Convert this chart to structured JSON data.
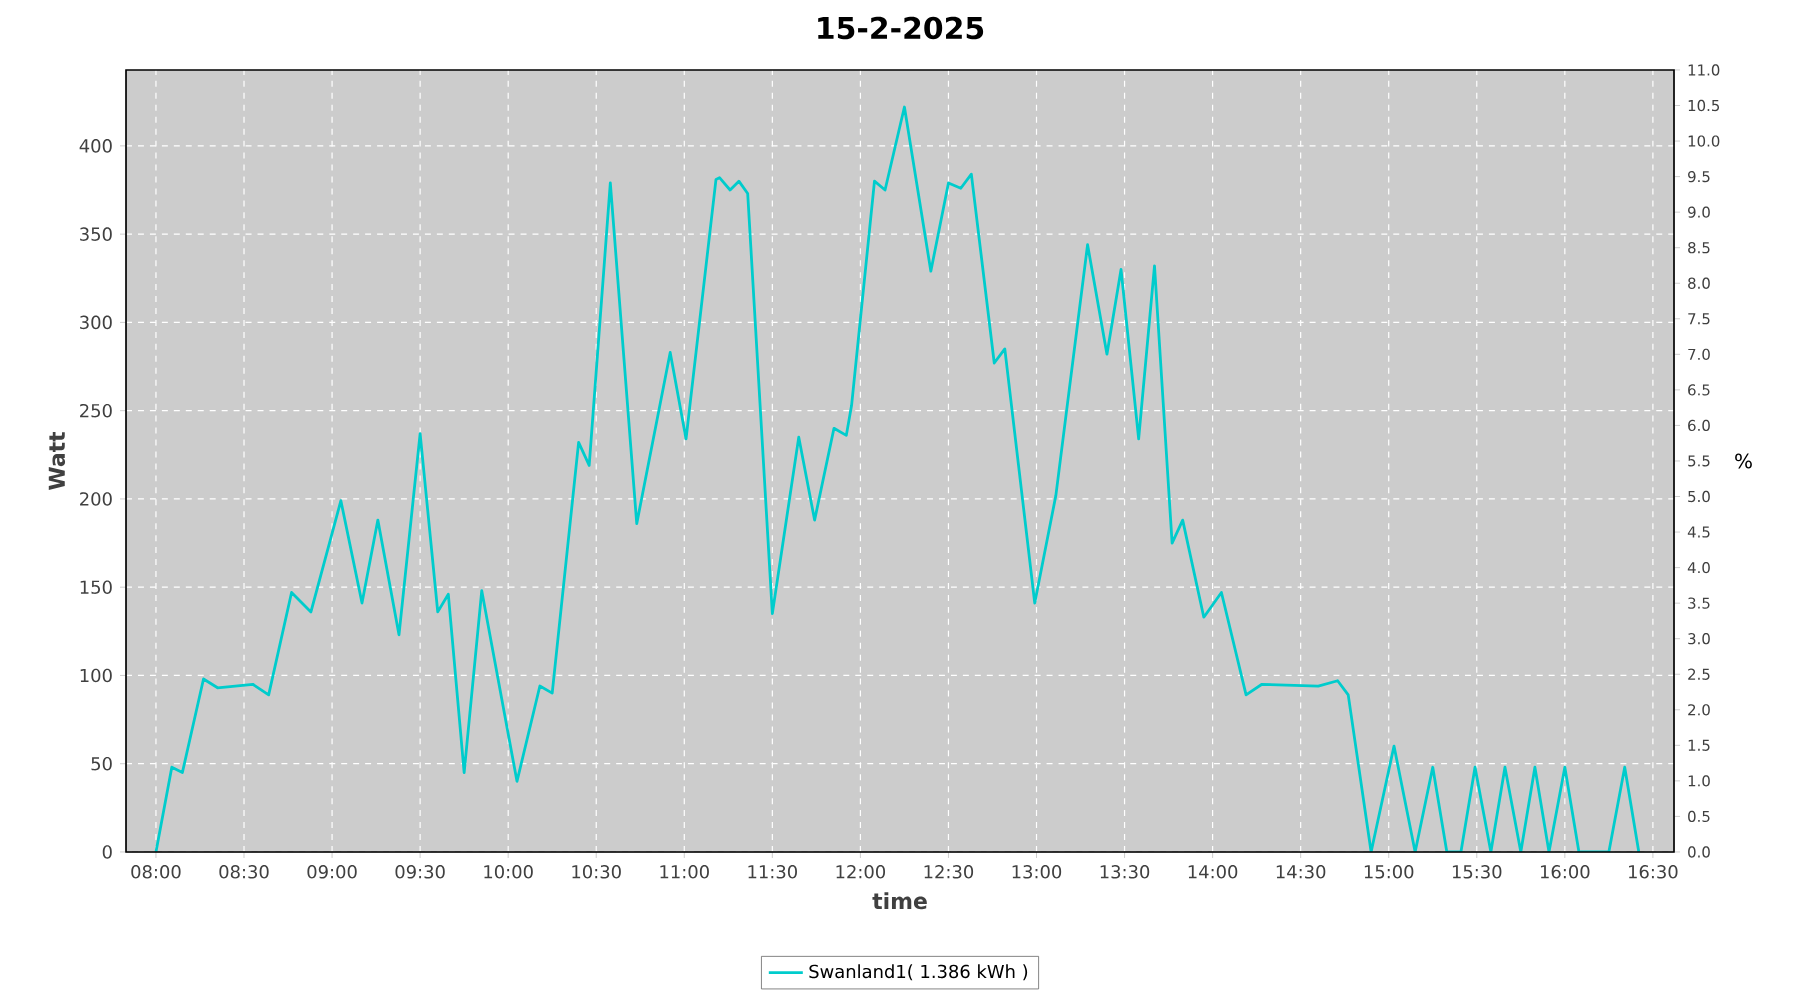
{
  "chart_data": {
    "type": "line",
    "title": "15-2-2025",
    "xlabel": "time",
    "ylabel": "Watt",
    "y2label": "%",
    "xlim": [
      7.83,
      16.62
    ],
    "xticks": [
      {
        "value": 8,
        "label": "08:00"
      },
      {
        "value": 8.5,
        "label": "08:30"
      },
      {
        "value": 9,
        "label": "09:00"
      },
      {
        "value": 9.5,
        "label": "09:30"
      },
      {
        "value": 10,
        "label": "10:00"
      },
      {
        "value": 10.5,
        "label": "10:30"
      },
      {
        "value": 11,
        "label": "11:00"
      },
      {
        "value": 11.5,
        "label": "11:30"
      },
      {
        "value": 12,
        "label": "12:00"
      },
      {
        "value": 12.5,
        "label": "12:30"
      },
      {
        "value": 13,
        "label": "13:00"
      },
      {
        "value": 13.5,
        "label": "13:30"
      },
      {
        "value": 14,
        "label": "14:00"
      },
      {
        "value": 14.5,
        "label": "14:30"
      },
      {
        "value": 15,
        "label": "15:00"
      },
      {
        "value": 15.5,
        "label": "15:30"
      },
      {
        "value": 16,
        "label": "16:00"
      },
      {
        "value": 16.5,
        "label": "16:30"
      }
    ],
    "ylim": [
      0,
      443
    ],
    "yticks": [
      0,
      50,
      100,
      150,
      200,
      250,
      300,
      350,
      400
    ],
    "y2lim": [
      0,
      11
    ],
    "y2ticks": [
      {
        "value": 0,
        "label": "0.0"
      },
      {
        "value": 0.5,
        "label": "0.5"
      },
      {
        "value": 1,
        "label": "1.0"
      },
      {
        "value": 1.5,
        "label": "1.5"
      },
      {
        "value": 2,
        "label": "2.0"
      },
      {
        "value": 2.5,
        "label": "2.5"
      },
      {
        "value": 3,
        "label": "3.0"
      },
      {
        "value": 3.5,
        "label": "3.5"
      },
      {
        "value": 4,
        "label": "4.0"
      },
      {
        "value": 4.5,
        "label": "4.5"
      },
      {
        "value": 5,
        "label": "5.0"
      },
      {
        "value": 5.5,
        "label": "5.5"
      },
      {
        "value": 6,
        "label": "6.0"
      },
      {
        "value": 6.5,
        "label": "6.5"
      },
      {
        "value": 7,
        "label": "7.0"
      },
      {
        "value": 7.5,
        "label": "7.5"
      },
      {
        "value": 8,
        "label": "8.0"
      },
      {
        "value": 8.5,
        "label": "8.5"
      },
      {
        "value": 9,
        "label": "9.0"
      },
      {
        "value": 9.5,
        "label": "9.5"
      },
      {
        "value": 10,
        "label": "10.0"
      },
      {
        "value": 10.5,
        "label": "10.5"
      },
      {
        "value": 11,
        "label": "11.0"
      }
    ],
    "grid": true,
    "legend": "bottom",
    "marker": "none",
    "series": [
      {
        "name": "Swanland1( 1.386 kWh )",
        "color": "#00cccc",
        "x": [
          8.0,
          8.09,
          8.15,
          8.27,
          8.35,
          8.55,
          8.64,
          8.77,
          8.88,
          9.05,
          9.17,
          9.26,
          9.38,
          9.5,
          9.6,
          9.66,
          9.75,
          9.85,
          10.05,
          10.18,
          10.25,
          10.4,
          10.46,
          10.58,
          10.73,
          10.92,
          11.01,
          11.18,
          11.2,
          11.26,
          11.31,
          11.36,
          11.5,
          11.65,
          11.74,
          11.85,
          11.92,
          11.95,
          12.08,
          12.14,
          12.25,
          12.4,
          12.5,
          12.57,
          12.63,
          12.76,
          12.82,
          12.99,
          13.11,
          13.29,
          13.4,
          13.48,
          13.58,
          13.67,
          13.77,
          13.83,
          13.95,
          14.05,
          14.19,
          14.28,
          14.6,
          14.71,
          14.77,
          14.9,
          15.03,
          15.15,
          15.25,
          15.33,
          15.41,
          15.49,
          15.58,
          15.66,
          15.75,
          15.83,
          15.91,
          16.0,
          16.08,
          16.25,
          16.34,
          16.42
        ],
        "values": [
          0,
          48,
          45,
          98,
          93,
          95,
          89,
          147,
          136,
          199,
          141,
          188,
          123,
          237,
          136,
          146,
          45,
          148,
          40,
          94,
          90,
          232,
          219,
          379,
          186,
          283,
          234,
          381,
          382,
          375,
          380,
          373,
          135,
          235,
          188,
          240,
          236,
          253,
          380,
          375,
          422,
          329,
          379,
          376,
          384,
          277,
          285,
          141,
          202,
          344,
          282,
          330,
          234,
          332,
          175,
          188,
          133,
          147,
          89,
          95,
          94,
          97,
          89,
          0,
          60,
          0,
          48,
          0,
          0,
          48,
          0,
          48,
          0,
          48,
          0,
          48,
          0,
          0,
          48,
          0
        ]
      }
    ]
  }
}
